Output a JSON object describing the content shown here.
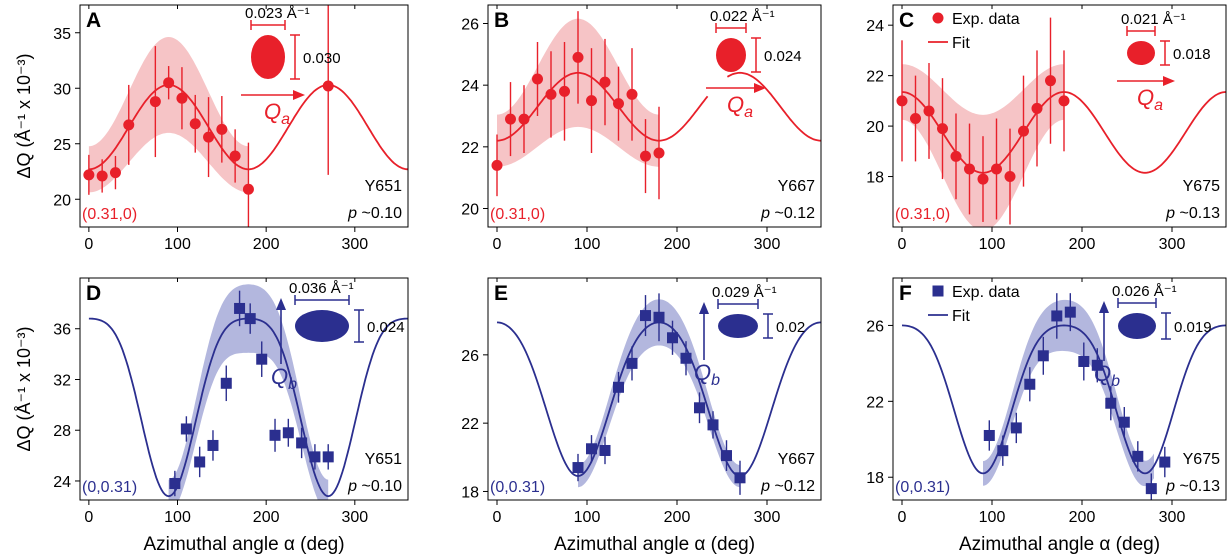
{
  "colors": {
    "red": "#e8202a",
    "red_band": "#f6c4c6",
    "blue": "#2b2f8f",
    "blue_band": "#b3b7de"
  },
  "common": {
    "xlabel_parts": [
      "Azimuthal angle ",
      "α",
      "  (deg)"
    ],
    "ylabel": "ΔQ  (Å⁻¹ x 10⁻³)",
    "p_prefix": "p"
  },
  "legend": {
    "exp": "Exp. data",
    "fit": "Fit"
  },
  "chart_data": [
    {
      "id": "A",
      "type": "scatter",
      "panel_label": "A",
      "color": "red",
      "marker": "circle",
      "xlim": [
        -10,
        360
      ],
      "ylim": [
        17.5,
        37.5
      ],
      "xticks": [
        0,
        100,
        200,
        300
      ],
      "yticks": [
        20,
        25,
        30,
        35
      ],
      "title": "",
      "sample": "Y651",
      "doping": "~0.10",
      "q_label": "(0.31,0)",
      "fit": {
        "a": 26.5,
        "b": 3.8,
        "phase": 90,
        "xmax": 360
      },
      "band": {
        "xmin": 0,
        "xmax": 180,
        "halfwidth": 3.2
      },
      "points": [
        {
          "x": 0,
          "y": 22.2,
          "e": 1.8
        },
        {
          "x": 15,
          "y": 22.1,
          "e": 1.5
        },
        {
          "x": 30,
          "y": 22.4,
          "e": 1.5
        },
        {
          "x": 45,
          "y": 26.7,
          "e": 3.6
        },
        {
          "x": 75,
          "y": 28.8,
          "e": 5.0
        },
        {
          "x": 90,
          "y": 30.5,
          "e": 1.5
        },
        {
          "x": 105,
          "y": 29.1,
          "e": 2.8
        },
        {
          "x": 120,
          "y": 26.8,
          "e": 2.6
        },
        {
          "x": 135,
          "y": 25.6,
          "e": 3.6
        },
        {
          "x": 150,
          "y": 26.3,
          "e": 3.0
        },
        {
          "x": 165,
          "y": 23.9,
          "e": 2.4
        },
        {
          "x": 180,
          "y": 20.9,
          "e": 4.2
        },
        {
          "x": 270,
          "y": 30.2,
          "e": 8.0
        }
      ],
      "ellipse": {
        "width": "0.023",
        "height": "0.030",
        "unit": "Å⁻¹",
        "axis": "Q",
        "axis_sub": "a"
      }
    },
    {
      "id": "B",
      "type": "scatter",
      "panel_label": "B",
      "color": "red",
      "marker": "circle",
      "xlim": [
        -10,
        360
      ],
      "ylim": [
        19.4,
        26.6
      ],
      "xticks": [
        0,
        100,
        200,
        300
      ],
      "yticks": [
        20,
        22,
        24,
        26
      ],
      "title": "",
      "sample": "Y667",
      "doping": "~0.12",
      "q_label": "(0.31,0)",
      "fit": {
        "a": 23.3,
        "b": 1.1,
        "phase": 90,
        "xmax": 360,
        "gap": [
          235,
          255
        ]
      },
      "band": {
        "xmin": 0,
        "xmax": 180,
        "halfwidth": 1.3
      },
      "points": [
        {
          "x": 0,
          "y": 21.4,
          "e": 1.0
        },
        {
          "x": 15,
          "y": 22.9,
          "e": 1.2
        },
        {
          "x": 30,
          "y": 22.9,
          "e": 1.1
        },
        {
          "x": 45,
          "y": 24.2,
          "e": 1.2
        },
        {
          "x": 60,
          "y": 23.7,
          "e": 1.4
        },
        {
          "x": 75,
          "y": 23.8,
          "e": 1.6
        },
        {
          "x": 90,
          "y": 24.9,
          "e": 1.5
        },
        {
          "x": 105,
          "y": 23.5,
          "e": 1.7
        },
        {
          "x": 120,
          "y": 24.1,
          "e": 1.4
        },
        {
          "x": 135,
          "y": 23.4,
          "e": 1.2
        },
        {
          "x": 150,
          "y": 23.7,
          "e": 1.5
        },
        {
          "x": 165,
          "y": 21.7,
          "e": 1.2
        },
        {
          "x": 180,
          "y": 21.8,
          "e": 1.5
        }
      ],
      "ellipse": {
        "width": "0.022",
        "height": "0.024",
        "unit": "Å⁻¹",
        "axis": "Q",
        "axis_sub": "a"
      }
    },
    {
      "id": "C",
      "type": "scatter",
      "panel_label": "C",
      "color": "red",
      "marker": "circle",
      "xlim": [
        -10,
        360
      ],
      "ylim": [
        16.0,
        24.8
      ],
      "xticks": [
        0,
        100,
        200,
        300
      ],
      "yticks": [
        18,
        20,
        22,
        24
      ],
      "title": "",
      "sample": "Y675",
      "doping": "~0.13",
      "q_label": "(0.31,0)",
      "legend": true,
      "fit": {
        "a": 19.75,
        "b": -1.6,
        "phase": 90,
        "xmax": 360
      },
      "band": {
        "xmin": 0,
        "xmax": 180,
        "halfwidth": 1.7
      },
      "points": [
        {
          "x": 0,
          "y": 21.0,
          "e": 2.4
        },
        {
          "x": 15,
          "y": 20.3,
          "e": 1.7
        },
        {
          "x": 30,
          "y": 20.6,
          "e": 1.9
        },
        {
          "x": 45,
          "y": 19.9,
          "e": 2.0
        },
        {
          "x": 60,
          "y": 18.8,
          "e": 1.7
        },
        {
          "x": 75,
          "y": 18.3,
          "e": 1.8
        },
        {
          "x": 90,
          "y": 17.9,
          "e": 1.7
        },
        {
          "x": 105,
          "y": 18.3,
          "e": 2.0
        },
        {
          "x": 120,
          "y": 18.0,
          "e": 1.9
        },
        {
          "x": 135,
          "y": 19.8,
          "e": 2.2
        },
        {
          "x": 150,
          "y": 20.7,
          "e": 2.3
        },
        {
          "x": 165,
          "y": 21.8,
          "e": 2.5
        },
        {
          "x": 180,
          "y": 21.0,
          "e": 2.0
        }
      ],
      "ellipse": {
        "width": "0.021",
        "height": "0.018",
        "unit": "Å⁻¹",
        "axis": "Q",
        "axis_sub": "a"
      }
    },
    {
      "id": "D",
      "type": "scatter",
      "panel_label": "D",
      "color": "blue",
      "marker": "square",
      "xlim": [
        -10,
        360
      ],
      "ylim": [
        22.5,
        40
      ],
      "xticks": [
        0,
        100,
        200,
        300
      ],
      "yticks": [
        24,
        28,
        32,
        36
      ],
      "title": "",
      "sample": "Y651",
      "doping": "~0.10",
      "q_label": "(0,0.31)",
      "fit": {
        "a": 31.3,
        "b": 7.0,
        "phase": 180,
        "xmax": 360,
        "amp_cos4": -1.5
      },
      "band": {
        "xmin": 90,
        "xmax": 270,
        "halfwidth": 2.0
      },
      "points": [
        {
          "x": 97,
          "y": 23.8,
          "e": 1.0
        },
        {
          "x": 110,
          "y": 28.1,
          "e": 1.0
        },
        {
          "x": 125,
          "y": 25.5,
          "e": 1.2
        },
        {
          "x": 140,
          "y": 26.8,
          "e": 1.2
        },
        {
          "x": 155,
          "y": 31.7,
          "e": 1.4
        },
        {
          "x": 170,
          "y": 37.6,
          "e": 1.4
        },
        {
          "x": 182,
          "y": 36.8,
          "e": 1.2
        },
        {
          "x": 195,
          "y": 33.6,
          "e": 1.4
        },
        {
          "x": 210,
          "y": 27.6,
          "e": 1.3
        },
        {
          "x": 225,
          "y": 27.8,
          "e": 1.1
        },
        {
          "x": 240,
          "y": 27.0,
          "e": 1.2
        },
        {
          "x": 255,
          "y": 25.9,
          "e": 1.0
        },
        {
          "x": 270,
          "y": 25.9,
          "e": 1.0
        }
      ],
      "ellipse": {
        "width": "0.036",
        "height": "0.024",
        "unit": "Å⁻¹",
        "axis": "Q",
        "axis_sub": "b"
      }
    },
    {
      "id": "E",
      "type": "scatter",
      "panel_label": "E",
      "color": "blue",
      "marker": "square",
      "xlim": [
        -10,
        360
      ],
      "ylim": [
        17.5,
        30.5
      ],
      "xticks": [
        0,
        100,
        200,
        300
      ],
      "yticks": [
        18,
        22,
        26
      ],
      "title": "",
      "sample": "Y667",
      "doping": "~0.12",
      "q_label": "(0,0.31)",
      "fit": {
        "a": 23.9,
        "b": 4.5,
        "phase": 180,
        "xmax": 360,
        "amp_cos4": -0.5
      },
      "band": {
        "xmin": 90,
        "xmax": 270,
        "halfwidth": 1.0
      },
      "points": [
        {
          "x": 90,
          "y": 19.4,
          "e": 0.8
        },
        {
          "x": 105,
          "y": 20.5,
          "e": 0.8
        },
        {
          "x": 120,
          "y": 20.4,
          "e": 0.8
        },
        {
          "x": 135,
          "y": 24.1,
          "e": 0.9
        },
        {
          "x": 150,
          "y": 25.5,
          "e": 1.0
        },
        {
          "x": 165,
          "y": 28.3,
          "e": 1.2
        },
        {
          "x": 180,
          "y": 28.2,
          "e": 1.4
        },
        {
          "x": 195,
          "y": 27.0,
          "e": 1.0
        },
        {
          "x": 210,
          "y": 25.8,
          "e": 1.0
        },
        {
          "x": 225,
          "y": 22.9,
          "e": 0.9
        },
        {
          "x": 240,
          "y": 21.9,
          "e": 0.8
        },
        {
          "x": 255,
          "y": 20.1,
          "e": 0.9
        },
        {
          "x": 270,
          "y": 18.8,
          "e": 1.0
        }
      ],
      "ellipse": {
        "width": "0.029",
        "height": "0.02",
        "unit": "Å⁻¹",
        "axis": "Q",
        "axis_sub": "b"
      }
    },
    {
      "id": "F",
      "type": "scatter",
      "panel_label": "F",
      "color": "blue",
      "marker": "square",
      "xlim": [
        -10,
        360
      ],
      "ylim": [
        16.8,
        28.5
      ],
      "xticks": [
        0,
        100,
        200,
        300
      ],
      "yticks": [
        18,
        22,
        26
      ],
      "title": "",
      "sample": "Y675",
      "doping": "~0.13",
      "q_label": "(0,0.31)",
      "legend": true,
      "fit": {
        "a": 22.8,
        "b": 3.9,
        "phase": 180,
        "xmax": 360,
        "amp_cos4": -0.7
      },
      "band": {
        "xmin": 90,
        "xmax": 280,
        "halfwidth": 1.0
      },
      "points": [
        {
          "x": 97,
          "y": 20.2,
          "e": 0.8
        },
        {
          "x": 112,
          "y": 19.4,
          "e": 0.8
        },
        {
          "x": 127,
          "y": 20.6,
          "e": 0.8
        },
        {
          "x": 142,
          "y": 22.9,
          "e": 0.9
        },
        {
          "x": 157,
          "y": 24.4,
          "e": 1.0
        },
        {
          "x": 172,
          "y": 26.5,
          "e": 1.2
        },
        {
          "x": 187,
          "y": 26.7,
          "e": 1.0
        },
        {
          "x": 202,
          "y": 24.1,
          "e": 1.0
        },
        {
          "x": 217,
          "y": 23.9,
          "e": 0.9
        },
        {
          "x": 232,
          "y": 21.9,
          "e": 0.9
        },
        {
          "x": 247,
          "y": 20.9,
          "e": 0.8
        },
        {
          "x": 262,
          "y": 19.1,
          "e": 0.8
        },
        {
          "x": 277,
          "y": 17.4,
          "e": 0.8
        },
        {
          "x": 292,
          "y": 18.8,
          "e": 0.8
        }
      ],
      "ellipse": {
        "width": "0.026",
        "height": "0.019",
        "unit": "Å⁻¹",
        "axis": "Q",
        "axis_sub": "b"
      }
    }
  ]
}
